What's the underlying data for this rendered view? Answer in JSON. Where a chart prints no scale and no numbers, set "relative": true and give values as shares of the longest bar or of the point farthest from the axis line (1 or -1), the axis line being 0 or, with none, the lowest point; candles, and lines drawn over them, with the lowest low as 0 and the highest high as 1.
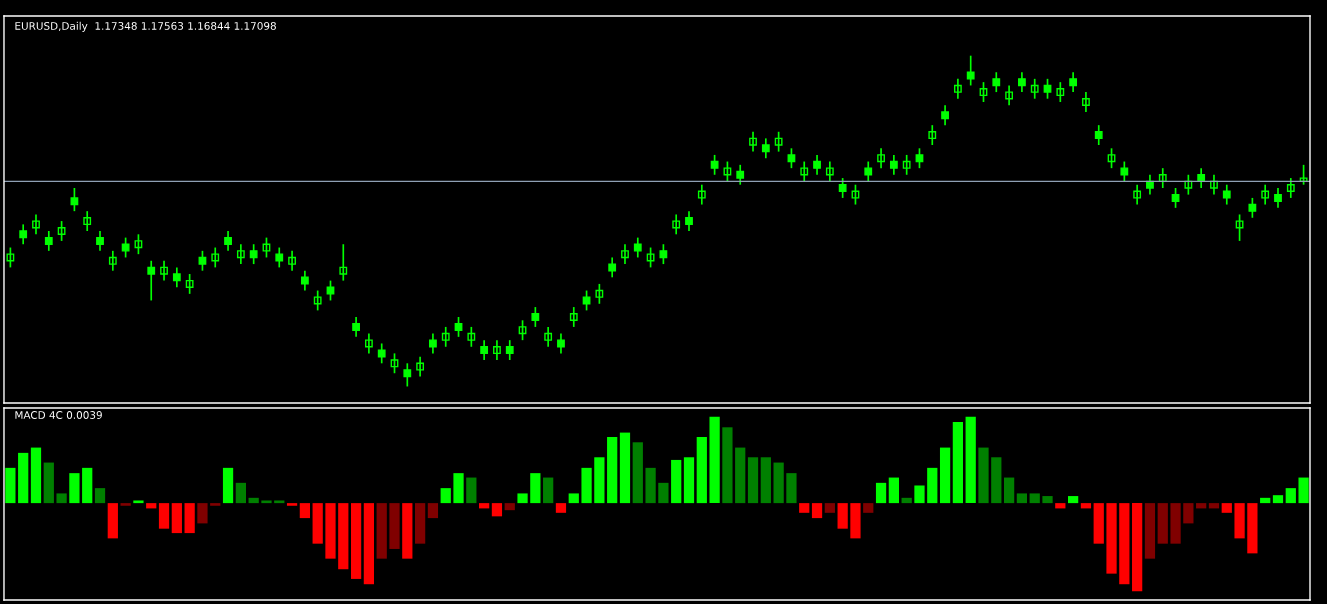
{
  "chart_data": [
    {
      "type": "candlestick",
      "title": "EURUSD,Daily  1.17348 1.17563 1.16844 1.17098",
      "relative": true,
      "color": "#00ff00",
      "categories": [
        null,
        null,
        null,
        null,
        null,
        null,
        null,
        null,
        null,
        null,
        null,
        null,
        null,
        null,
        null,
        null,
        null,
        null,
        null,
        null,
        null,
        null,
        null,
        null,
        null,
        null,
        null,
        null,
        null,
        null,
        null,
        null,
        null,
        null,
        null,
        null,
        null,
        null,
        null,
        null,
        null,
        null,
        null,
        null,
        null,
        null,
        null,
        null,
        null,
        null,
        null,
        null,
        null,
        null,
        null,
        null,
        null,
        null,
        null,
        null,
        null,
        null,
        null,
        null,
        null,
        null,
        null,
        null,
        null,
        null,
        null,
        null,
        null,
        null,
        null,
        null,
        null,
        null,
        null,
        null,
        null,
        null,
        null,
        null,
        null,
        null,
        null,
        null,
        null,
        null,
        null,
        null,
        null,
        null,
        null,
        null,
        null,
        null,
        null,
        null,
        null,
        null
      ],
      "ohlc": [
        [
          0.4,
          0.42,
          0.36,
          0.38
        ],
        [
          0.45,
          0.49,
          0.43,
          0.47
        ],
        [
          0.5,
          0.52,
          0.46,
          0.48
        ],
        [
          0.43,
          0.47,
          0.41,
          0.45
        ],
        [
          0.48,
          0.5,
          0.44,
          0.46
        ],
        [
          0.55,
          0.6,
          0.53,
          0.57
        ],
        [
          0.51,
          0.53,
          0.47,
          0.49
        ],
        [
          0.43,
          0.47,
          0.41,
          0.45
        ],
        [
          0.39,
          0.41,
          0.35,
          0.37
        ],
        [
          0.41,
          0.45,
          0.39,
          0.43
        ],
        [
          0.44,
          0.46,
          0.4,
          0.42
        ],
        [
          0.34,
          0.38,
          0.26,
          0.36
        ],
        [
          0.36,
          0.38,
          0.32,
          0.34
        ],
        [
          0.32,
          0.36,
          0.3,
          0.34
        ],
        [
          0.32,
          0.34,
          0.28,
          0.3
        ],
        [
          0.37,
          0.41,
          0.35,
          0.39
        ],
        [
          0.4,
          0.42,
          0.36,
          0.38
        ],
        [
          0.43,
          0.47,
          0.41,
          0.45
        ],
        [
          0.41,
          0.43,
          0.37,
          0.39
        ],
        [
          0.39,
          0.43,
          0.37,
          0.41
        ],
        [
          0.43,
          0.45,
          0.39,
          0.41
        ],
        [
          0.38,
          0.42,
          0.36,
          0.4
        ],
        [
          0.39,
          0.41,
          0.35,
          0.37
        ],
        [
          0.31,
          0.35,
          0.29,
          0.33
        ],
        [
          0.27,
          0.29,
          0.23,
          0.25
        ],
        [
          0.28,
          0.32,
          0.26,
          0.3
        ],
        [
          0.36,
          0.43,
          0.32,
          0.34
        ],
        [
          0.17,
          0.21,
          0.15,
          0.19
        ],
        [
          0.14,
          0.16,
          0.1,
          0.12
        ],
        [
          0.09,
          0.13,
          0.07,
          0.11
        ],
        [
          0.08,
          0.1,
          0.04,
          0.06
        ],
        [
          0.03,
          0.07,
          0.0,
          0.05
        ],
        [
          0.07,
          0.09,
          0.03,
          0.05
        ],
        [
          0.12,
          0.16,
          0.1,
          0.14
        ],
        [
          0.16,
          0.18,
          0.12,
          0.14
        ],
        [
          0.17,
          0.21,
          0.15,
          0.19
        ],
        [
          0.16,
          0.18,
          0.12,
          0.14
        ],
        [
          0.1,
          0.14,
          0.08,
          0.12
        ],
        [
          0.12,
          0.14,
          0.08,
          0.1
        ],
        [
          0.1,
          0.14,
          0.08,
          0.12
        ],
        [
          0.18,
          0.2,
          0.14,
          0.16
        ],
        [
          0.2,
          0.24,
          0.18,
          0.22
        ],
        [
          0.16,
          0.18,
          0.12,
          0.14
        ],
        [
          0.12,
          0.16,
          0.1,
          0.14
        ],
        [
          0.22,
          0.24,
          0.18,
          0.2
        ],
        [
          0.25,
          0.29,
          0.23,
          0.27
        ],
        [
          0.29,
          0.31,
          0.25,
          0.27
        ],
        [
          0.35,
          0.39,
          0.33,
          0.37
        ],
        [
          0.41,
          0.43,
          0.37,
          0.39
        ],
        [
          0.41,
          0.45,
          0.39,
          0.43
        ],
        [
          0.4,
          0.42,
          0.36,
          0.38
        ],
        [
          0.39,
          0.43,
          0.37,
          0.41
        ],
        [
          0.5,
          0.52,
          0.46,
          0.48
        ],
        [
          0.49,
          0.53,
          0.47,
          0.51
        ],
        [
          0.59,
          0.61,
          0.55,
          0.57
        ],
        [
          0.66,
          0.7,
          0.64,
          0.68
        ],
        [
          0.66,
          0.68,
          0.62,
          0.64
        ],
        [
          0.63,
          0.67,
          0.61,
          0.65
        ],
        [
          0.75,
          0.77,
          0.71,
          0.73
        ],
        [
          0.71,
          0.75,
          0.69,
          0.73
        ],
        [
          0.75,
          0.77,
          0.71,
          0.73
        ],
        [
          0.68,
          0.72,
          0.66,
          0.7
        ],
        [
          0.66,
          0.68,
          0.62,
          0.64
        ],
        [
          0.66,
          0.7,
          0.64,
          0.68
        ],
        [
          0.66,
          0.68,
          0.62,
          0.64
        ],
        [
          0.59,
          0.63,
          0.57,
          0.61
        ],
        [
          0.59,
          0.61,
          0.55,
          0.57
        ],
        [
          0.64,
          0.68,
          0.62,
          0.66
        ],
        [
          0.7,
          0.72,
          0.66,
          0.68
        ],
        [
          0.66,
          0.7,
          0.64,
          0.68
        ],
        [
          0.68,
          0.7,
          0.64,
          0.66
        ],
        [
          0.68,
          0.72,
          0.66,
          0.7
        ],
        [
          0.77,
          0.79,
          0.73,
          0.75
        ],
        [
          0.81,
          0.85,
          0.79,
          0.83
        ],
        [
          0.91,
          0.93,
          0.87,
          0.89
        ],
        [
          0.93,
          1.0,
          0.91,
          0.95
        ],
        [
          0.9,
          0.92,
          0.86,
          0.88
        ],
        [
          0.91,
          0.95,
          0.89,
          0.93
        ],
        [
          0.89,
          0.91,
          0.85,
          0.87
        ],
        [
          0.91,
          0.95,
          0.89,
          0.93
        ],
        [
          0.91,
          0.93,
          0.87,
          0.89
        ],
        [
          0.89,
          0.93,
          0.87,
          0.91
        ],
        [
          0.9,
          0.92,
          0.86,
          0.88
        ],
        [
          0.91,
          0.95,
          0.89,
          0.93
        ],
        [
          0.87,
          0.89,
          0.83,
          0.85
        ],
        [
          0.75,
          0.79,
          0.73,
          0.77
        ],
        [
          0.7,
          0.72,
          0.66,
          0.68
        ],
        [
          0.64,
          0.68,
          0.62,
          0.66
        ],
        [
          0.59,
          0.61,
          0.55,
          0.57
        ],
        [
          0.6,
          0.64,
          0.58,
          0.62
        ],
        [
          0.64,
          0.66,
          0.6,
          0.62
        ],
        [
          0.56,
          0.6,
          0.54,
          0.58
        ],
        [
          0.62,
          0.64,
          0.58,
          0.6
        ],
        [
          0.62,
          0.66,
          0.6,
          0.64
        ],
        [
          0.62,
          0.64,
          0.58,
          0.6
        ],
        [
          0.57,
          0.61,
          0.55,
          0.59
        ],
        [
          0.5,
          0.52,
          0.44,
          0.48
        ],
        [
          0.53,
          0.57,
          0.51,
          0.55
        ],
        [
          0.59,
          0.61,
          0.55,
          0.57
        ],
        [
          0.56,
          0.6,
          0.54,
          0.58
        ],
        [
          0.61,
          0.63,
          0.57,
          0.59
        ],
        [
          0.63,
          0.67,
          0.61,
          0.62
        ]
      ],
      "ref_lines": [
        {
          "axis": "y",
          "value": 0.62,
          "color": "#8fa0b4"
        }
      ]
    },
    {
      "type": "bar",
      "title": "MACD 4C 0.0039",
      "relative": true,
      "categories": [
        null,
        null,
        null,
        null,
        null,
        null,
        null,
        null,
        null,
        null,
        null,
        null,
        null,
        null,
        null,
        null,
        null,
        null,
        null,
        null,
        null,
        null,
        null,
        null,
        null,
        null,
        null,
        null,
        null,
        null,
        null,
        null,
        null,
        null,
        null,
        null,
        null,
        null,
        null,
        null,
        null,
        null,
        null,
        null,
        null,
        null,
        null,
        null,
        null,
        null,
        null,
        null,
        null,
        null,
        null,
        null,
        null,
        null,
        null,
        null,
        null,
        null,
        null,
        null,
        null,
        null,
        null,
        null,
        null,
        null,
        null,
        null,
        null,
        null,
        null,
        null,
        null,
        null,
        null,
        null,
        null,
        null,
        null,
        null,
        null,
        null,
        null,
        null,
        null,
        null,
        null,
        null,
        null,
        null,
        null,
        null,
        null,
        null,
        null,
        null,
        null,
        null
      ],
      "values": [
        0.4,
        0.57,
        0.63,
        0.46,
        0.11,
        0.34,
        0.4,
        0.17,
        -0.4,
        -0.03,
        0.03,
        -0.06,
        -0.29,
        -0.34,
        -0.34,
        -0.23,
        -0.03,
        0.4,
        0.23,
        0.06,
        0.03,
        0.03,
        -0.03,
        -0.17,
        -0.46,
        -0.63,
        -0.75,
        -0.86,
        -0.92,
        -0.63,
        -0.52,
        -0.63,
        -0.46,
        -0.17,
        0.17,
        0.34,
        0.29,
        -0.06,
        -0.15,
        -0.08,
        0.11,
        0.34,
        0.29,
        -0.11,
        0.11,
        0.4,
        0.52,
        0.75,
        0.8,
        0.69,
        0.4,
        0.23,
        0.49,
        0.52,
        0.75,
        0.98,
        0.86,
        0.63,
        0.52,
        0.52,
        0.46,
        0.34,
        -0.11,
        -0.17,
        -0.11,
        -0.29,
        -0.4,
        -0.11,
        0.23,
        0.29,
        0.06,
        0.2,
        0.4,
        0.63,
        0.92,
        0.98,
        0.63,
        0.52,
        0.29,
        0.11,
        0.11,
        0.08,
        -0.06,
        0.08,
        -0.06,
        -0.46,
        -0.8,
        -0.92,
        -1.0,
        -0.63,
        -0.46,
        -0.46,
        -0.23,
        -0.06,
        -0.06,
        -0.11,
        -0.4,
        -0.57,
        0.06,
        0.09,
        0.17,
        0.29
      ],
      "colors": [
        "#00ff00",
        "#00ff00",
        "#00ff00",
        "#008000",
        "#008000",
        "#00ff00",
        "#00ff00",
        "#008000",
        "#ff0000",
        "#800000",
        "#00ff00",
        "#ff0000",
        "#ff0000",
        "#ff0000",
        "#ff0000",
        "#800000",
        "#800000",
        "#00ff00",
        "#008000",
        "#008000",
        "#008000",
        "#008000",
        "#ff0000",
        "#ff0000",
        "#ff0000",
        "#ff0000",
        "#ff0000",
        "#ff0000",
        "#ff0000",
        "#800000",
        "#800000",
        "#ff0000",
        "#800000",
        "#800000",
        "#00ff00",
        "#00ff00",
        "#008000",
        "#ff0000",
        "#ff0000",
        "#800000",
        "#00ff00",
        "#00ff00",
        "#008000",
        "#ff0000",
        "#00ff00",
        "#00ff00",
        "#00ff00",
        "#00ff00",
        "#00ff00",
        "#008000",
        "#008000",
        "#008000",
        "#00ff00",
        "#00ff00",
        "#00ff00",
        "#00ff00",
        "#008000",
        "#008000",
        "#008000",
        "#008000",
        "#008000",
        "#008000",
        "#ff0000",
        "#ff0000",
        "#800000",
        "#ff0000",
        "#ff0000",
        "#800000",
        "#00ff00",
        "#00ff00",
        "#008000",
        "#00ff00",
        "#00ff00",
        "#00ff00",
        "#00ff00",
        "#00ff00",
        "#008000",
        "#008000",
        "#008000",
        "#008000",
        "#008000",
        "#008000",
        "#ff0000",
        "#00ff00",
        "#ff0000",
        "#ff0000",
        "#ff0000",
        "#ff0000",
        "#ff0000",
        "#800000",
        "#800000",
        "#800000",
        "#800000",
        "#800000",
        "#800000",
        "#ff0000",
        "#ff0000",
        "#ff0000",
        "#00ff00",
        "#00ff00",
        "#00ff00",
        "#00ff00"
      ]
    }
  ]
}
